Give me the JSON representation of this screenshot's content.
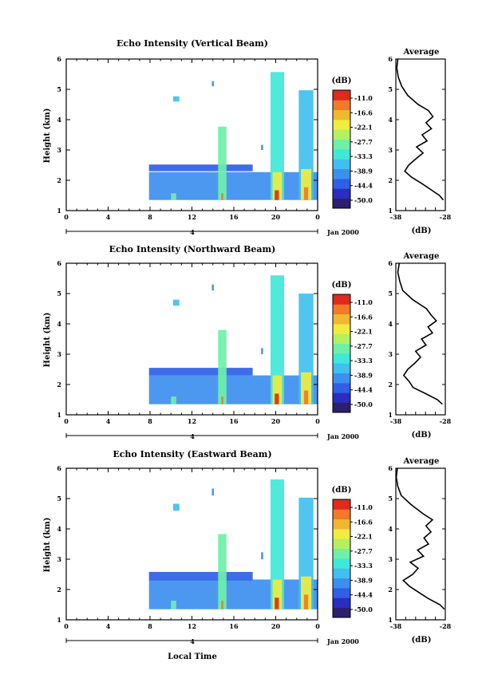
{
  "chart_data": {
    "type": "heatmap",
    "date_label": "Jan 2000",
    "day_label": "4",
    "bottom_xlabel": "Local Time",
    "panels": [
      {
        "title": "Echo Intensity (Vertical Beam)",
        "ylabel": "Height (km)",
        "xlabel": "",
        "xlim": [
          0,
          24
        ],
        "ylim": [
          1,
          6
        ],
        "xticks": [
          "0",
          "4",
          "8",
          "12",
          "16",
          "20",
          "0"
        ],
        "yticks": [
          "1",
          "2",
          "3",
          "4",
          "5",
          "6"
        ],
        "colorbar": {
          "unit": "(dB)",
          "levels": [
            "-11.0",
            "-16.6",
            "-22.1",
            "-27.7",
            "-33.3",
            "-38.9",
            "-44.4",
            "-50.0"
          ]
        },
        "average_profile": {
          "title": "Average",
          "xlabel": "(dB)",
          "xlim": [
            -38,
            -28
          ],
          "xticks": [
            "-38",
            "-28"
          ],
          "yticks": [
            "1",
            "2",
            "3",
            "4",
            "5",
            "6"
          ],
          "height_km": [
            1.35,
            1.5,
            1.7,
            1.9,
            2.1,
            2.3,
            2.5,
            2.7,
            2.9,
            3.1,
            3.3,
            3.5,
            3.7,
            3.9,
            4.1,
            4.3,
            4.5,
            4.8,
            5.1,
            5.4,
            5.7,
            6.0
          ],
          "db": [
            -28.4,
            -29.2,
            -31.0,
            -32.8,
            -34.8,
            -36.2,
            -35.4,
            -34.0,
            -32.5,
            -33.8,
            -31.7,
            -32.7,
            -30.8,
            -31.9,
            -30.5,
            -31.4,
            -33.5,
            -35.6,
            -36.8,
            -37.5,
            -37.8,
            -37.6
          ]
        }
      },
      {
        "title": "Echo Intensity (Northward Beam)",
        "ylabel": "Height (km)",
        "xlabel": "",
        "xlim": [
          0,
          24
        ],
        "ylim": [
          1,
          6
        ],
        "xticks": [
          "0",
          "4",
          "8",
          "12",
          "16",
          "20",
          "0"
        ],
        "yticks": [
          "1",
          "2",
          "3",
          "4",
          "5",
          "6"
        ],
        "colorbar": {
          "unit": "(dB)",
          "levels": [
            "-11.0",
            "-16.6",
            "-22.1",
            "-27.7",
            "-33.3",
            "-38.9",
            "-44.4",
            "-50.0"
          ]
        },
        "average_profile": {
          "title": "Average",
          "xlabel": "(dB)",
          "xlim": [
            -38,
            -28
          ],
          "xticks": [
            "-38",
            "-28"
          ],
          "yticks": [
            "1",
            "2",
            "3",
            "4",
            "5",
            "6"
          ],
          "height_km": [
            1.35,
            1.5,
            1.7,
            1.9,
            2.1,
            2.3,
            2.5,
            2.7,
            2.9,
            3.1,
            3.3,
            3.5,
            3.7,
            3.9,
            4.1,
            4.3,
            4.5,
            4.8,
            5.1,
            5.4,
            5.7,
            6.0
          ],
          "db": [
            -28.6,
            -29.6,
            -32.0,
            -34.5,
            -35.3,
            -36.4,
            -35.6,
            -34.2,
            -33.0,
            -34.0,
            -31.9,
            -32.8,
            -30.6,
            -31.5,
            -29.8,
            -30.9,
            -31.8,
            -34.6,
            -36.6,
            -37.2,
            -37.6,
            -37.3
          ]
        }
      },
      {
        "title": "Echo Intensity (Eastward Beam)",
        "ylabel": "Height (km)",
        "xlabel": "Local Time",
        "xlim": [
          0,
          24
        ],
        "ylim": [
          1,
          6
        ],
        "xticks": [
          "0",
          "4",
          "8",
          "12",
          "16",
          "20",
          "0"
        ],
        "yticks": [
          "1",
          "2",
          "3",
          "4",
          "5",
          "6"
        ],
        "colorbar": {
          "unit": "(dB)",
          "levels": [
            "-11.0",
            "-16.6",
            "-22.1",
            "-27.7",
            "-33.3",
            "-38.9",
            "-44.4",
            "-50.0"
          ]
        },
        "average_profile": {
          "title": "Average",
          "xlabel": "(dB)",
          "xlim": [
            -38,
            -28
          ],
          "xticks": [
            "-38",
            "-28"
          ],
          "yticks": [
            "1",
            "2",
            "3",
            "4",
            "5",
            "6"
          ],
          "height_km": [
            1.35,
            1.5,
            1.7,
            1.9,
            2.1,
            2.3,
            2.5,
            2.7,
            2.9,
            3.1,
            3.3,
            3.5,
            3.7,
            3.9,
            4.1,
            4.3,
            4.5,
            4.8,
            5.1,
            5.4,
            5.7,
            6.0
          ],
          "db": [
            -28.2,
            -29.1,
            -31.4,
            -33.3,
            -35.2,
            -36.5,
            -34.6,
            -33.5,
            -35.1,
            -32.4,
            -33.6,
            -31.4,
            -32.3,
            -30.9,
            -31.9,
            -30.6,
            -32.5,
            -34.9,
            -36.9,
            -37.6,
            -37.9,
            -37.7
          ]
        }
      }
    ],
    "colormap": [
      "#2b1f6e",
      "#2a2dbf",
      "#2e5fe6",
      "#3d8fef",
      "#40c0ee",
      "#40e8d8",
      "#6ef0a8",
      "#b4f060",
      "#f0ec40",
      "#f0b830",
      "#f07a28",
      "#e02a1e"
    ],
    "echo_regions": [
      {
        "x": [
          7.9,
          24.0
        ],
        "y": [
          1.35,
          2.3
        ],
        "db": -38
      },
      {
        "x": [
          7.9,
          17.8
        ],
        "y": [
          2.3,
          2.55
        ],
        "db": -42
      },
      {
        "x": [
          10.0,
          10.5
        ],
        "y": [
          1.35,
          1.6
        ],
        "db": -27
      },
      {
        "x": [
          14.5,
          15.3
        ],
        "y": [
          1.35,
          3.8
        ],
        "db": -30
      },
      {
        "x": [
          14.8,
          15.0
        ],
        "y": [
          1.35,
          1.6
        ],
        "db": -14
      },
      {
        "x": [
          19.5,
          20.8
        ],
        "y": [
          1.35,
          5.6
        ],
        "db": -34
      },
      {
        "x": [
          19.7,
          20.6
        ],
        "y": [
          1.35,
          2.3
        ],
        "db": -20
      },
      {
        "x": [
          19.9,
          20.3
        ],
        "y": [
          1.35,
          1.7
        ],
        "db": -12
      },
      {
        "x": [
          22.2,
          23.6
        ],
        "y": [
          1.35,
          5.0
        ],
        "db": -36
      },
      {
        "x": [
          22.4,
          23.4
        ],
        "y": [
          1.35,
          2.4
        ],
        "db": -22
      },
      {
        "x": [
          22.7,
          23.1
        ],
        "y": [
          1.35,
          1.8
        ],
        "db": -13
      },
      {
        "x": [
          10.2,
          10.8
        ],
        "y": [
          4.6,
          4.8
        ],
        "db": -36
      },
      {
        "x": [
          13.9,
          14.1
        ],
        "y": [
          5.1,
          5.3
        ],
        "db": -40
      },
      {
        "x": [
          18.6,
          18.8
        ],
        "y": [
          3.0,
          3.2
        ],
        "db": -40
      }
    ]
  }
}
